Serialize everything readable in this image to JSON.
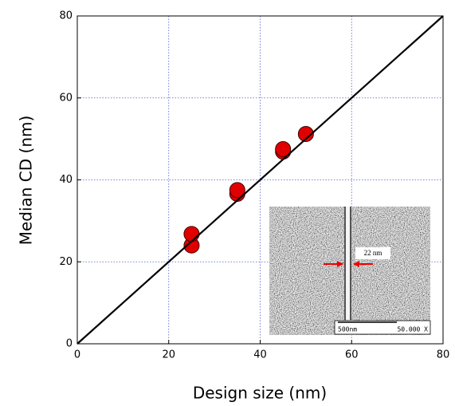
{
  "chart_data": {
    "type": "scatter",
    "x_label": "Design size (nm)",
    "y_label": "Median CD (nm)",
    "series": [
      {
        "color": "#e00000",
        "mode": "markers",
        "x": [
          25,
          25,
          35,
          35,
          45,
          45,
          50
        ],
        "values": [
          24,
          26.8,
          36.6,
          37.5,
          46.9,
          47.5,
          51.2
        ]
      },
      {
        "color": "#000000",
        "mode": "line",
        "x": [
          0,
          80
        ],
        "values": [
          0,
          80
        ]
      }
    ],
    "xlim": [
      0,
      80
    ],
    "ylim": [
      0,
      80
    ],
    "xticks": [
      0,
      20,
      40,
      60,
      80
    ],
    "yticks": [
      0,
      20,
      40,
      60,
      80
    ],
    "grid": true,
    "annotations": [
      "22 nm",
      "500nm",
      "50.000 X"
    ]
  }
}
